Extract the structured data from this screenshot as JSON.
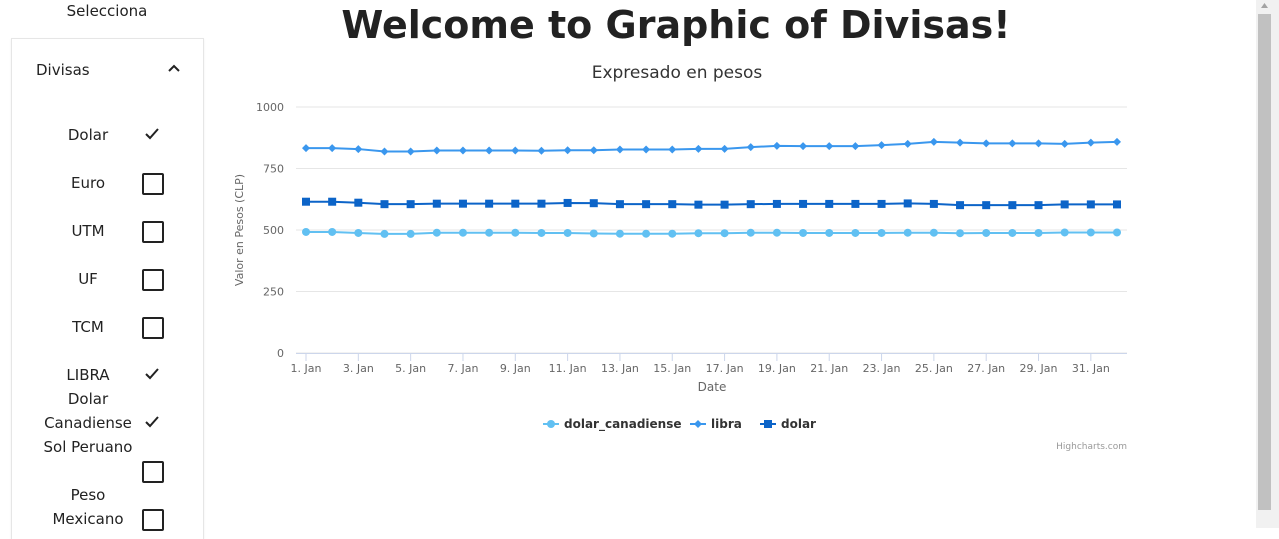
{
  "sidebar": {
    "title": "Selecciona",
    "section_label": "Divisas",
    "options": [
      {
        "label": "Dolar",
        "checked": true
      },
      {
        "label": "Euro",
        "checked": false
      },
      {
        "label": "UTM",
        "checked": false
      },
      {
        "label": "UF",
        "checked": false
      },
      {
        "label": "TCM",
        "checked": false
      },
      {
        "label": "LIBRA",
        "checked": true
      },
      {
        "label": "Dolar Canadiense",
        "checked": true
      },
      {
        "label": "Sol Peruano",
        "checked": false
      },
      {
        "label": "Peso Mexicano",
        "checked": false
      }
    ]
  },
  "main": {
    "title": "Welcome to Graphic of Divisas!"
  },
  "chart_data": {
    "type": "line",
    "title": "Expresado en pesos",
    "xlabel": "Date",
    "ylabel": "Valor en Pesos (CLP)",
    "ylim": [
      0,
      1000
    ],
    "yticks": [
      0,
      250,
      500,
      750,
      1000
    ],
    "xticks": [
      "1. Jan",
      "3. Jan",
      "5. Jan",
      "7. Jan",
      "9. Jan",
      "11. Jan",
      "13. Jan",
      "15. Jan",
      "17. Jan",
      "19. Jan",
      "21. Jan",
      "23. Jan",
      "25. Jan",
      "27. Jan",
      "29. Jan",
      "31. Jan"
    ],
    "x": [
      1,
      2,
      3,
      4,
      5,
      6,
      7,
      8,
      9,
      10,
      11,
      12,
      13,
      14,
      15,
      16,
      17,
      18,
      19,
      20,
      21,
      22,
      23,
      24,
      25,
      26,
      27,
      28,
      29,
      30,
      31,
      32
    ],
    "grid": true,
    "legend_position": "bottom",
    "credits": "Highcharts.com",
    "series": [
      {
        "name": "dolar_canadiense",
        "color": "#61c0f2",
        "marker": "circle",
        "values": [
          492,
          492,
          488,
          484,
          484,
          489,
          489,
          489,
          489,
          488,
          488,
          486,
          485,
          485,
          485,
          487,
          487,
          489,
          489,
          488,
          488,
          488,
          488,
          489,
          489,
          487,
          488,
          488,
          488,
          490,
          490,
          490
        ]
      },
      {
        "name": "libra",
        "color": "#3a97ee",
        "marker": "diamond",
        "values": [
          833,
          833,
          829,
          819,
          819,
          823,
          823,
          823,
          823,
          822,
          824,
          824,
          827,
          827,
          827,
          830,
          830,
          837,
          842,
          841,
          841,
          841,
          845,
          850,
          858,
          855,
          852,
          852,
          852,
          850,
          855,
          858
        ]
      },
      {
        "name": "dolar",
        "color": "#0c64c8",
        "marker": "square",
        "values": [
          615,
          615,
          611,
          605,
          605,
          607,
          607,
          607,
          607,
          607,
          610,
          609,
          605,
          605,
          605,
          603,
          603,
          605,
          606,
          606,
          606,
          606,
          606,
          608,
          606,
          601,
          601,
          601,
          601,
          604,
          604,
          604
        ]
      }
    ]
  }
}
